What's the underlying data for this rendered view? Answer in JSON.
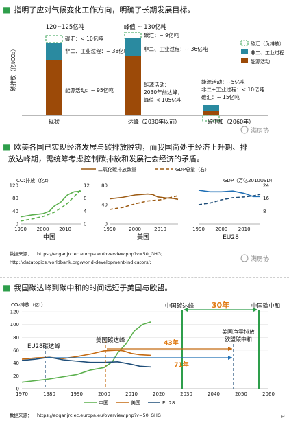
{
  "section1": {
    "bullet": "■",
    "text": "指明了应对气候变化工作方向，明确了长期发展目标。",
    "chart_data": {
      "type": "bar",
      "ylabel": "碳排放（亿tCO₂）",
      "categories": [
        "现状",
        "达峰（2030年以前）",
        "碳中和（2060年）"
      ],
      "tops": [
        "120~125亿吨",
        "峰值 ~ 130亿吨",
        ""
      ],
      "series": [
        {
          "name": "碳汇（负排放）",
          "values": [
            -10,
            -9,
            -15
          ]
        },
        {
          "name": "非二、工业过程",
          "values": [
            38,
            36,
            10
          ]
        },
        {
          "name": "能源活动",
          "values": [
            95,
            105,
            5
          ]
        }
      ],
      "annotations": {
        "bar1": {
          "sink": "碳汇：< 10亿吨",
          "process": "非二、工业过程：~ 38亿吨",
          "energy": "能源活动：~ 95亿吨"
        },
        "bar2": {
          "sink": "碳汇：~ 9亿吨",
          "process": "非二、工业过程：~ 36亿吨",
          "energy_1": "能源活动：",
          "energy_2": "2030年前达峰，",
          "energy_3": "峰值 < 105亿吨"
        },
        "bar3": {
          "line1": "能源活动：~5亿吨",
          "line2": "非二+工业过程：< 10亿吨",
          "line3": "碳汇：~ 15亿吨"
        }
      },
      "colors": {
        "sink": "#2e9e4b",
        "process": "#2a8aa0",
        "energy": "#9c4a08"
      }
    },
    "watermark": "满房协"
  },
  "section2": {
    "bullet": "■",
    "text_line1": "欧美各国已实现经济发展与碳排放脱钩，而我国尚处于经济上升期、排",
    "text_line2": "放达峰期，需统筹考虑控制碳排放和发展社会经济的矛盾。",
    "legend": {
      "emission": "二氧化碳排放数量",
      "gdp": "GDP总量（右）"
    },
    "left_axis_label": "CO₂排放（亿t）",
    "right_axis_label": "GDP（万亿2010USD）",
    "chart_data": [
      {
        "type": "line",
        "title": "中国",
        "xlim": [
          1990,
          2017
        ],
        "ylim": [
          0,
          120
        ],
        "yticks": [
          "0",
          "40",
          "80",
          "120"
        ],
        "right_yticks": [
          "0",
          "4",
          "8",
          "12"
        ],
        "xticks": [
          "1990",
          "2000",
          "2010"
        ],
        "series": [
          {
            "name": "二氧化碳排放数量",
            "x": [
              1990,
              1995,
              2000,
              2003,
              2005,
              2008,
              2011,
              2014,
              2017
            ],
            "y": [
              22,
              28,
              32,
              40,
              55,
              68,
              90,
              100,
              102
            ]
          },
          {
            "name": "GDP总量（右）",
            "x": [
              1990,
              1995,
              2000,
              2005,
              2008,
              2011,
              2014,
              2017
            ],
            "y": [
              0.9,
              1.5,
              2.3,
              3.6,
              4.9,
              6.4,
              8.5,
              10.6
            ]
          }
        ]
      },
      {
        "type": "line",
        "title": "美国",
        "xlim": [
          1990,
          2017
        ],
        "ylim": [
          0,
          80
        ],
        "yticks": [
          "0",
          "40",
          "80"
        ],
        "right_yticks": [
          "",
          "8",
          "16"
        ],
        "xticks": [
          "1990",
          "2000",
          "2010"
        ],
        "series": [
          {
            "name": "二氧化碳排放数量",
            "x": [
              1990,
              1995,
              2000,
              2005,
              2007,
              2009,
              2012,
              2015,
              2017
            ],
            "y": [
              52,
              55,
              60,
              62,
              61,
              56,
              54,
              53,
              51
            ]
          },
          {
            "name": "GDP总量（右）",
            "x": [
              1990,
              1995,
              2000,
              2005,
              2010,
              2015,
              2017
            ],
            "y": [
              9,
              10.2,
              12.5,
              14.3,
              15,
              16.8,
              17.6
            ]
          }
        ]
      },
      {
        "type": "line",
        "title": "EU28",
        "xlim": [
          1990,
          2017
        ],
        "ylim": [
          0,
          48
        ],
        "right_yticks": [
          "8",
          "16",
          "24"
        ],
        "xticks": [
          "1990",
          "2000",
          "2010"
        ],
        "series": [
          {
            "name": "二氧化碳排放数量",
            "x": [
              1990,
              1995,
              2000,
              2005,
              2010,
              2014,
              2017
            ],
            "y": [
              42,
              40,
              40,
              41,
              38,
              34,
              34
            ]
          },
          {
            "name": "GDP总量（右）",
            "x": [
              1990,
              1995,
              2000,
              2005,
              2010,
              2014,
              2017
            ],
            "y": [
              12,
              13,
              15,
              16.3,
              16.8,
              17.5,
              18.4
            ]
          }
        ]
      }
    ],
    "source_label": "数据来源：",
    "source_1": "https://edgar.jrc.ec.europa.eu/overview.php?v=50_GHG;",
    "source_2": "http://datatopics.worldbank.org/world-development-indicators/;",
    "watermark": "满房协"
  },
  "section3": {
    "bullet": "■",
    "text": "我国碳达峰到碳中和的时间远短于美国与欧盟。",
    "chart_data": {
      "type": "line",
      "ylabel": "CO₂排放（亿t）",
      "xlim": [
        1970,
        2060
      ],
      "ylim": [
        0,
        120
      ],
      "xticks": [
        "1970",
        "1980",
        "1990",
        "2000",
        "2010",
        "2020",
        "2030",
        "2040",
        "2050",
        "2060"
      ],
      "yticks": [
        "0",
        "20",
        "40",
        "60",
        "80",
        "100",
        "120"
      ],
      "series": [
        {
          "name": "中国",
          "x": [
            1970,
            1980,
            1990,
            1995,
            2000,
            2003,
            2005,
            2008,
            2011,
            2014,
            2017
          ],
          "y": [
            10,
            15,
            22,
            29,
            33,
            42,
            56,
            70,
            90,
            100,
            104
          ]
        },
        {
          "name": "美国",
          "x": [
            1970,
            1975,
            1980,
            1985,
            1990,
            1995,
            2000,
            2005,
            2007,
            2010,
            2013,
            2017
          ],
          "y": [
            46,
            48,
            49,
            47,
            50,
            54,
            59,
            60,
            59,
            55,
            53,
            52
          ]
        },
        {
          "name": "EU28",
          "x": [
            1970,
            1975,
            1980,
            1985,
            1990,
            1995,
            2000,
            2005,
            2010,
            2013,
            2017
          ],
          "y": [
            44,
            46,
            49,
            45,
            43,
            41,
            41,
            42,
            38,
            35,
            34
          ]
        }
      ],
      "annotations": {
        "eu_peak": "EU28碳达峰",
        "us_peak": "美国碳达峰",
        "cn_peak": "中国碳达峰",
        "cn_neutral": "中国碳中和",
        "gap_cn": "30年",
        "gap_us": "43年",
        "gap_eu": "71年",
        "eu_us_neutral_1": "美国净零排放",
        "eu_us_neutral_2": "欧盟碳中和"
      }
    },
    "source_label": "数据来源：",
    "source": "https://edgar.jrc.ec.europa.eu/overview.php?v=50_GHG",
    "return_mark": "↵"
  }
}
